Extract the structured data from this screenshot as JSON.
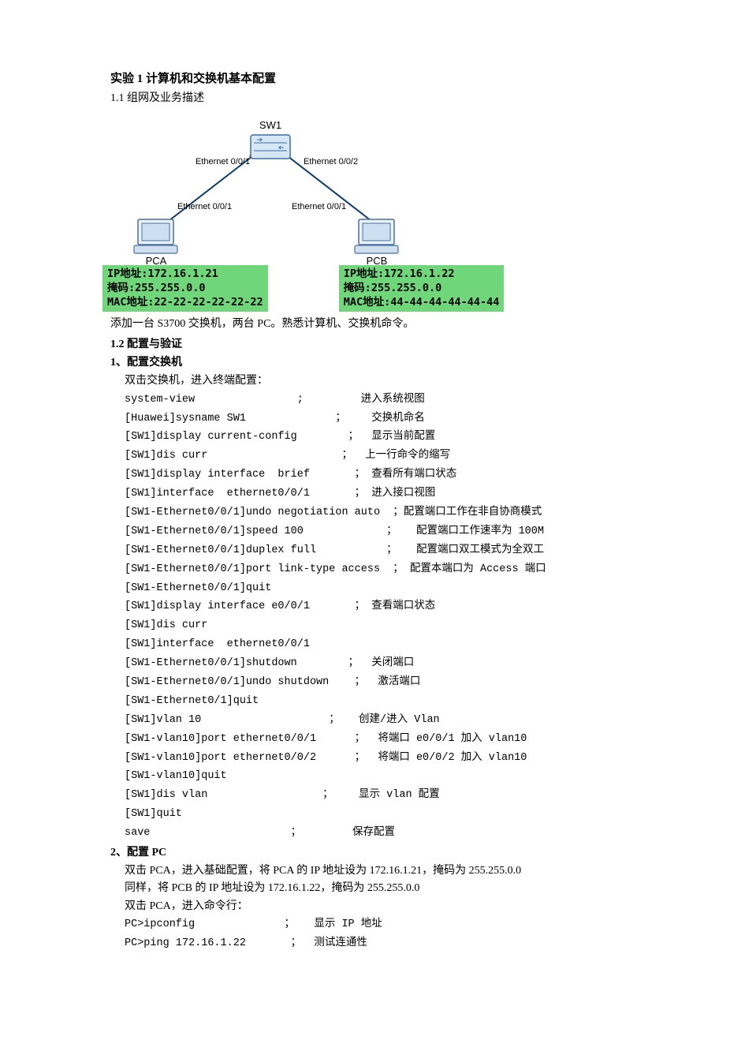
{
  "title": "实验 1 计算机和交换机基本配置",
  "section11": "1.1 组网及业务描述",
  "diagram": {
    "sw_label": "SW1",
    "eth_sw_left": "Ethernet 0/0/1",
    "eth_sw_right": "Ethernet 0/0/2",
    "eth_pca": "Ethernet 0/0/1",
    "eth_pcb": "Ethernet 0/0/1",
    "pca_label": "PCA",
    "pcb_label": "PCB",
    "switch_body_color": "#d6e8f5",
    "switch_outline": "#3b6ea5",
    "link_color": "#0a3a6b",
    "dot_color": "#d42020",
    "pc_monitor_fill": "#eaf2fb",
    "pc_monitor_stroke": "#4a6fa0",
    "pc_base_fill": "#d0dff0"
  },
  "ipbox_a": {
    "ip_label": "IP地址:172.16.1.21",
    "mask_label": "掩码:255.255.0.0",
    "mac_label": "MAC地址:22-22-22-22-22-22"
  },
  "ipbox_b": {
    "ip_label": "IP地址:172.16.1.22",
    "mask_label": "掩码:255.255.0.0",
    "mac_label": "MAC地址:44-44-44-44-44-44"
  },
  "intro": "添加一台 S3700 交换机，两台 PC。熟悉计算机、交换机命令。",
  "section12": "1.2 配置与验证",
  "step1_heading": "1、配置交换机",
  "step1_intro": "双击交换机，进入终端配置：",
  "commands": [
    {
      "cmd": "system-view",
      "pad": "                ; ",
      "desc": "        进入系统视图"
    },
    {
      "cmd": "[Huawei]sysname SW1",
      "pad": "              ；",
      "desc": "    交换机命名"
    },
    {
      "cmd": "[SW1]display current-config",
      "pad": "        ；",
      "desc": "  显示当前配置"
    },
    {
      "cmd": "[SW1]dis curr",
      "pad": "                     ；",
      "desc": "  上一行命令的缩写"
    },
    {
      "cmd": "[SW1]display interface  brief",
      "pad": "       ；",
      "desc": " 查看所有端口状态"
    },
    {
      "cmd": "[SW1]interface  ethernet0/0/1",
      "pad": "       ；",
      "desc": " 进入接口视图"
    },
    {
      "cmd": "[SW1-Ethernet0/0/1]undo negotiation auto",
      "pad": "  ；",
      "desc": "配置端口工作在非自协商模式"
    },
    {
      "cmd": "[SW1-Ethernet0/0/1]speed 100",
      "pad": "             ；",
      "desc": "   配置端口工作速率为 100M"
    },
    {
      "cmd": "[SW1-Ethernet0/0/1]duplex full",
      "pad": "           ；",
      "desc": "   配置端口双工模式为全双工"
    },
    {
      "cmd": "[SW1-Ethernet0/0/1]port link-type access",
      "pad": "  ；",
      "desc": " 配置本端口为 Access 端口"
    },
    {
      "cmd": "[SW1-Ethernet0/0/1]quit",
      "pad": "",
      "desc": ""
    },
    {
      "cmd": "[SW1]display interface e0/0/1",
      "pad": "       ；",
      "desc": " 查看端口状态"
    },
    {
      "cmd": "[SW1]dis curr",
      "pad": "",
      "desc": ""
    },
    {
      "cmd": "[SW1]interface  ethernet0/0/1",
      "pad": "",
      "desc": ""
    },
    {
      "cmd": "[SW1-Ethernet0/0/1]shutdown",
      "pad": "        ；",
      "desc": "  关闭端口"
    },
    {
      "cmd": "[SW1-Ethernet0/0/1]undo shutdown",
      "pad": "    ；",
      "desc": "  激活端口"
    },
    {
      "cmd": "[SW1-Ethernet0/1]quit",
      "pad": "",
      "desc": ""
    },
    {
      "cmd": "[SW1]vlan 10",
      "pad": "                    ；",
      "desc": "   创建/进入 Vlan"
    },
    {
      "cmd": "[SW1-vlan10]port ethernet0/0/1",
      "pad": "      ；",
      "desc": "  将端口 e0/0/1 加入 vlan10"
    },
    {
      "cmd": "[SW1-vlan10]port ethernet0/0/2",
      "pad": "      ；",
      "desc": "  将端口 e0/0/2 加入 vlan10"
    },
    {
      "cmd": "[SW1-vlan10]quit",
      "pad": "",
      "desc": ""
    },
    {
      "cmd": "[SW1]dis vlan",
      "pad": "                  ；",
      "desc": "    显示 vlan 配置"
    },
    {
      "cmd": "[SW1]quit",
      "pad": "",
      "desc": ""
    },
    {
      "cmd": "save",
      "pad": "                      ；",
      "desc": "        保存配置"
    }
  ],
  "step2_heading": "2、配置 PC",
  "step2_line1": "双击 PCA，进入基础配置，将 PCA 的 IP 地址设为 172.16.1.21，掩码为 255.255.0.0",
  "step2_line2": "同样，将 PCB 的 IP 地址设为 172.16.1.22，掩码为 255.255.0.0",
  "step2_line3": "双击 PCA，进入命令行：",
  "pc_cmds": [
    {
      "cmd": "PC>ipconfig",
      "pad": "              ；",
      "desc": "   显示 IP 地址"
    },
    {
      "cmd": "PC>ping 172.16.1.22",
      "pad": "       ；",
      "desc": "  测试连通性"
    }
  ]
}
